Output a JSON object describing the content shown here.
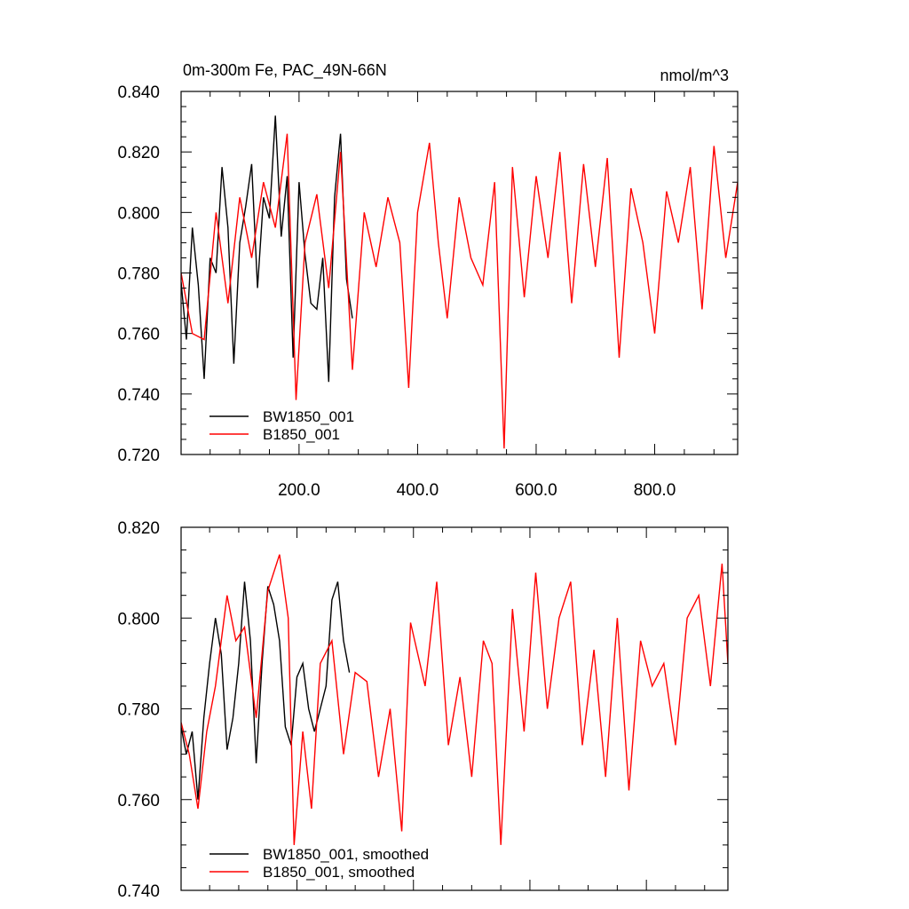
{
  "chart_data": [
    {
      "type": "line",
      "title": "0m-300m Fe, PAC_49N-66N",
      "units": "nmol/m^3",
      "xlim": [
        1,
        940
      ],
      "ylim": [
        0.72,
        0.84
      ],
      "xticks": [
        200,
        400,
        600,
        800
      ],
      "xtick_labels": [
        "200.0",
        "400.0",
        "600.0",
        "800.0"
      ],
      "yticks": [
        0.72,
        0.74,
        0.76,
        0.78,
        0.8,
        0.82,
        0.84
      ],
      "ytick_labels": [
        "0.720",
        "0.740",
        "0.760",
        "0.780",
        "0.800",
        "0.820",
        "0.840"
      ],
      "legend_position": "bottom-left",
      "series": [
        {
          "name": "BW1850_001",
          "color": "#000000",
          "x": [
            1,
            10,
            20,
            30,
            40,
            50,
            60,
            70,
            80,
            90,
            100,
            110,
            120,
            130,
            140,
            150,
            160,
            170,
            180,
            190,
            200,
            210,
            220,
            230,
            240,
            250,
            260,
            270,
            280,
            290
          ],
          "values": [
            0.777,
            0.758,
            0.795,
            0.776,
            0.745,
            0.785,
            0.78,
            0.815,
            0.795,
            0.75,
            0.79,
            0.802,
            0.816,
            0.775,
            0.805,
            0.798,
            0.832,
            0.792,
            0.812,
            0.752,
            0.81,
            0.786,
            0.77,
            0.768,
            0.785,
            0.744,
            0.805,
            0.826,
            0.778,
            0.765
          ]
        },
        {
          "name": "B1850_001",
          "color": "#ff0000",
          "x": [
            1,
            20,
            40,
            60,
            80,
            100,
            120,
            140,
            160,
            180,
            195,
            210,
            230,
            250,
            270,
            290,
            310,
            330,
            350,
            370,
            385,
            400,
            420,
            435,
            450,
            470,
            490,
            510,
            530,
            546,
            560,
            580,
            600,
            620,
            640,
            660,
            680,
            700,
            720,
            740,
            760,
            780,
            800,
            820,
            840,
            860,
            880,
            900,
            920,
            940
          ],
          "values": [
            0.78,
            0.76,
            0.758,
            0.8,
            0.77,
            0.805,
            0.785,
            0.81,
            0.795,
            0.826,
            0.738,
            0.79,
            0.806,
            0.775,
            0.82,
            0.748,
            0.8,
            0.782,
            0.805,
            0.79,
            0.742,
            0.8,
            0.823,
            0.79,
            0.765,
            0.805,
            0.785,
            0.776,
            0.81,
            0.722,
            0.815,
            0.772,
            0.812,
            0.785,
            0.82,
            0.77,
            0.816,
            0.782,
            0.818,
            0.752,
            0.808,
            0.79,
            0.76,
            0.807,
            0.79,
            0.815,
            0.768,
            0.822,
            0.785,
            0.81
          ]
        }
      ]
    },
    {
      "type": "line",
      "title": "",
      "units": "",
      "xlim": [
        1,
        940
      ],
      "ylim": [
        0.74,
        0.82
      ],
      "yticks": [
        0.74,
        0.76,
        0.78,
        0.8,
        0.82
      ],
      "ytick_labels": [
        "0.740",
        "0.760",
        "0.780",
        "0.800",
        "0.820"
      ],
      "legend_position": "bottom-left",
      "series": [
        {
          "name": "BW1850_001, smoothed",
          "color": "#000000",
          "x": [
            1,
            10,
            20,
            30,
            40,
            50,
            60,
            70,
            80,
            90,
            100,
            110,
            120,
            130,
            140,
            150,
            160,
            170,
            180,
            190,
            200,
            210,
            220,
            230,
            240,
            250,
            260,
            270,
            280,
            290
          ],
          "values": [
            0.776,
            0.77,
            0.775,
            0.76,
            0.778,
            0.79,
            0.8,
            0.792,
            0.771,
            0.778,
            0.79,
            0.808,
            0.795,
            0.768,
            0.79,
            0.807,
            0.803,
            0.795,
            0.776,
            0.772,
            0.787,
            0.79,
            0.78,
            0.775,
            0.78,
            0.785,
            0.804,
            0.808,
            0.795,
            0.788
          ]
        },
        {
          "name": "B1850_001, smoothed",
          "color": "#ff0000",
          "x": [
            1,
            15,
            30,
            45,
            60,
            80,
            95,
            110,
            130,
            150,
            170,
            185,
            195,
            210,
            225,
            240,
            260,
            280,
            300,
            320,
            340,
            360,
            380,
            395,
            420,
            440,
            460,
            480,
            500,
            520,
            535,
            550,
            570,
            590,
            610,
            630,
            650,
            670,
            690,
            710,
            730,
            750,
            770,
            790,
            810,
            830,
            850,
            870,
            890,
            910,
            930,
            940
          ],
          "values": [
            0.777,
            0.77,
            0.758,
            0.775,
            0.785,
            0.805,
            0.795,
            0.798,
            0.778,
            0.806,
            0.814,
            0.8,
            0.75,
            0.775,
            0.758,
            0.79,
            0.795,
            0.77,
            0.788,
            0.786,
            0.765,
            0.78,
            0.753,
            0.799,
            0.785,
            0.808,
            0.772,
            0.787,
            0.765,
            0.795,
            0.79,
            0.75,
            0.802,
            0.775,
            0.81,
            0.78,
            0.8,
            0.808,
            0.772,
            0.793,
            0.765,
            0.8,
            0.762,
            0.795,
            0.785,
            0.79,
            0.772,
            0.8,
            0.805,
            0.785,
            0.812,
            0.79
          ]
        }
      ]
    }
  ]
}
